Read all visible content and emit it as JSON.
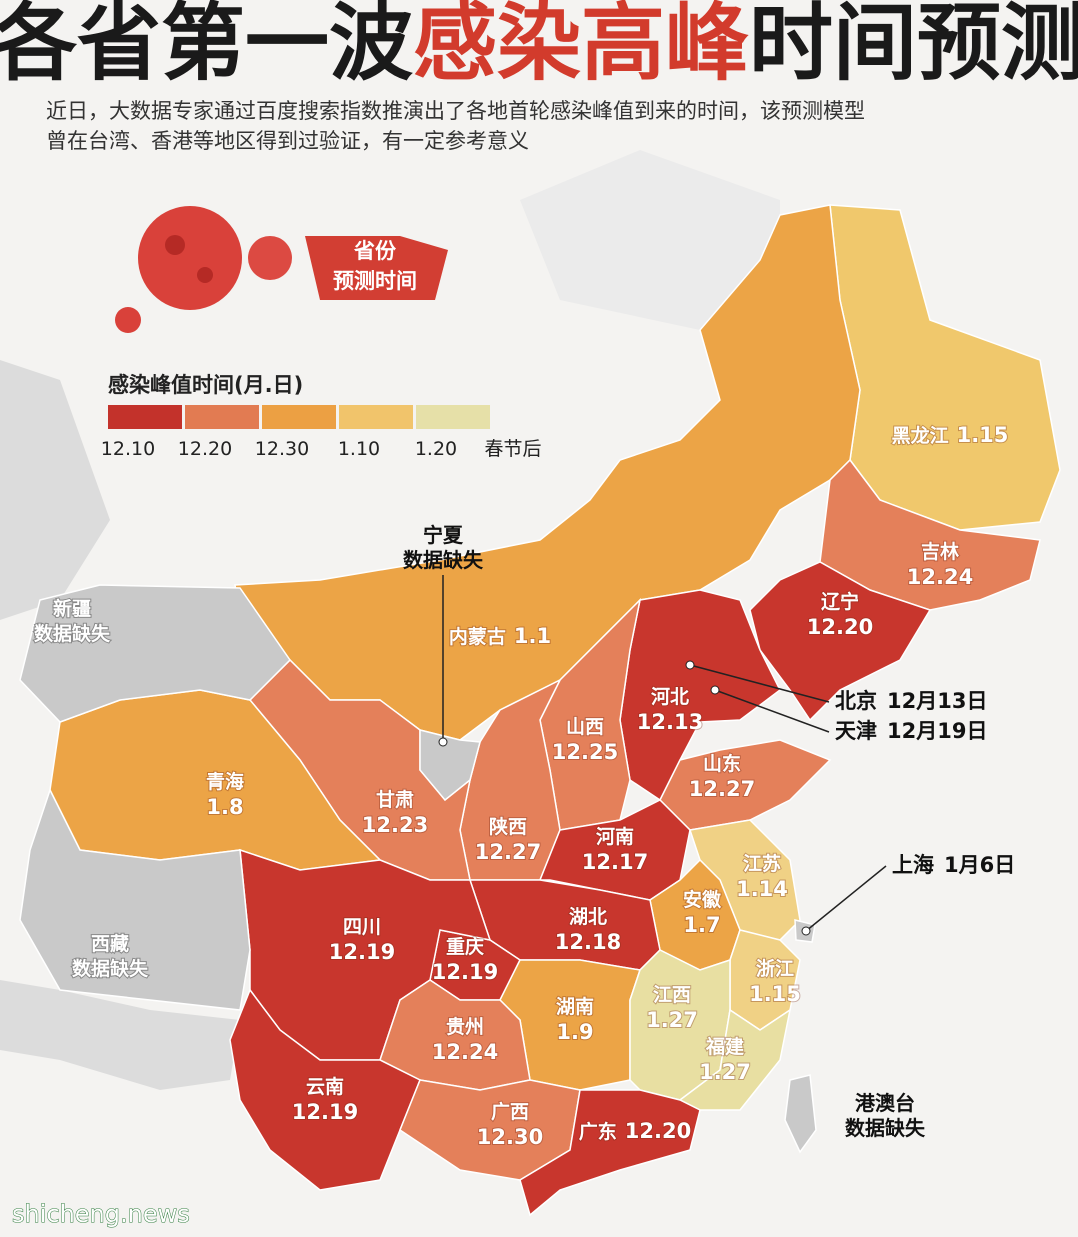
{
  "header": {
    "title": [
      "各省第一波",
      "感染高峰",
      "时间预测"
    ],
    "subtitle": [
      "近日，大数据专家通过百度搜索指数推演出了各地首轮感染峰值到来的时间，该预测模型",
      "曾在台湾、香港等地区得到过验证，有一定参考意义"
    ]
  },
  "badge": [
    "省份",
    "预测时间"
  ],
  "legend": {
    "title": "感染峰值时间(月.日)",
    "colors": [
      "#c3322b",
      "#e27b52",
      "#eca043",
      "#f1c46b",
      "#e6e0a8"
    ],
    "labels": [
      "12.10",
      "12.20",
      "12.30",
      "1.10",
      "1.20",
      "春节后"
    ]
  },
  "provinces": [
    {
      "name": "黑龙江",
      "date": "1.15",
      "color": "#f0c86c"
    },
    {
      "name": "内蒙古",
      "date": "1.1",
      "color": "#eca446"
    },
    {
      "name": "吉林",
      "date": "12.24",
      "color": "#e4805a"
    },
    {
      "name": "辽宁",
      "date": "12.20",
      "color": "#c8362d"
    },
    {
      "name": "河北",
      "date": "12.13",
      "color": "#c8362d"
    },
    {
      "name": "山西",
      "date": "12.25",
      "color": "#e4805a"
    },
    {
      "name": "山东",
      "date": "12.27",
      "color": "#e4805a"
    },
    {
      "name": "陕西",
      "date": "12.27",
      "color": "#e4805a"
    },
    {
      "name": "甘肃",
      "date": "12.23",
      "color": "#e4805a"
    },
    {
      "name": "青海",
      "date": "1.8",
      "color": "#eca446"
    },
    {
      "name": "河南",
      "date": "12.17",
      "color": "#c8362d"
    },
    {
      "name": "江苏",
      "date": "1.14",
      "color": "#f0d185"
    },
    {
      "name": "安徽",
      "date": "1.7",
      "color": "#eca446"
    },
    {
      "name": "湖北",
      "date": "12.18",
      "color": "#c8362d"
    },
    {
      "name": "重庆",
      "date": "12.19",
      "color": "#c8362d"
    },
    {
      "name": "四川",
      "date": "12.19",
      "color": "#c8362d"
    },
    {
      "name": "浙江",
      "date": "1.15",
      "color": "#f0d185"
    },
    {
      "name": "湖南",
      "date": "1.9",
      "color": "#eca446"
    },
    {
      "name": "江西",
      "date": "1.27",
      "color": "#e8dfa2"
    },
    {
      "name": "福建",
      "date": "1.27",
      "color": "#e8dfa2"
    },
    {
      "name": "贵州",
      "date": "12.24",
      "color": "#e4805a"
    },
    {
      "name": "云南",
      "date": "12.19",
      "color": "#c8362d"
    },
    {
      "name": "广西",
      "date": "12.30",
      "color": "#e4805a"
    },
    {
      "name": "广东",
      "date": "12.20",
      "color": "#c8362d"
    }
  ],
  "callouts": [
    {
      "name": "北京",
      "date": "12月13日"
    },
    {
      "name": "天津",
      "date": "12月19日"
    },
    {
      "name": "上海",
      "date": "1月6日"
    }
  ],
  "missing": [
    {
      "name": "宁夏",
      "note": "数据缺失"
    },
    {
      "name": "新疆",
      "note": "数据缺失"
    },
    {
      "name": "西藏",
      "note": "数据缺失"
    },
    {
      "name": "港澳台",
      "note": "数据缺失"
    }
  ],
  "watermark": "shicheng.news"
}
